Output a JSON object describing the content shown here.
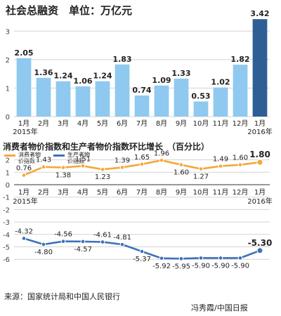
{
  "figure": {
    "title": "社会总融资　单位：万亿元",
    "title2": "消费者物价指数和生产者物价指数环比增长　（百分比）",
    "source": "来源：国家统计局和中国人民银行",
    "credit": "冯秀霞/中国日报"
  },
  "legend": {
    "cpi": "消费者物价指数",
    "ppi": "生产者物价指数"
  },
  "colors": {
    "bar": "#8fc9ef",
    "bar_highlight": "#2d5f96",
    "cpi": "#f5a73b",
    "ppi": "#3c72b8",
    "grid": "#d3d3d3"
  },
  "chart_data": [
    {
      "type": "bar",
      "title": "社会总融资",
      "ylabel": "单位：万亿元",
      "categories": [
        "1月",
        "2月",
        "3月",
        "4月",
        "5月",
        "6月",
        "7月",
        "8月",
        "9月",
        "10月",
        "11月",
        "12月",
        "1月"
      ],
      "year_labels": [
        "2015年",
        "2016年"
      ],
      "values": [
        2.05,
        1.36,
        1.24,
        1.06,
        1.24,
        1.83,
        0.74,
        1.09,
        1.33,
        0.53,
        1.02,
        1.82,
        3.42
      ],
      "value_labels": [
        "2.05",
        "1.36",
        "1.24",
        "1.06",
        "1.24",
        "1.83",
        "0.74",
        "1.09",
        "1.33",
        "0.53",
        "1.02",
        "1.82",
        "3.42"
      ],
      "yticks": [
        "0",
        "1",
        "2",
        "3"
      ],
      "ylim": [
        0,
        3.5
      ],
      "grid": true
    },
    {
      "type": "line",
      "title": "消费者物价指数和生产者物价指数环比增长",
      "ylabel": "百分比",
      "categories": [
        "1月",
        "2月",
        "3月",
        "4月",
        "5月",
        "6月",
        "7月",
        "8月",
        "9月",
        "10月",
        "11月",
        "12月",
        "1月"
      ],
      "year_labels": [
        "2015年",
        "2016年"
      ],
      "yticks": [
        "2",
        "1",
        "0",
        "-1",
        "-2",
        "-3",
        "-4",
        "-5",
        "-6"
      ],
      "ylim": [
        -6.5,
        2.5
      ],
      "grid": true,
      "series": [
        {
          "name": "消费者物价指数",
          "values": [
            0.76,
            1.43,
            1.38,
            1.51,
            1.23,
            1.39,
            1.65,
            1.96,
            1.6,
            1.27,
            1.49,
            1.6,
            1.8
          ],
          "labels": [
            "0.76",
            "1.43",
            "1.38",
            "1.51",
            "1.23",
            "1.39",
            "1.65",
            "1.96",
            "1.60",
            "1.27",
            "1.49",
            "1.60",
            "1.80"
          ]
        },
        {
          "name": "生产者物价指数",
          "values": [
            -4.32,
            -4.8,
            -4.56,
            -4.57,
            -4.61,
            -4.81,
            -5.37,
            -5.92,
            -5.95,
            -5.9,
            -5.9,
            -5.9,
            -5.3
          ],
          "labels": [
            "-4.32",
            "-4.80",
            "-4.56",
            "-4.57",
            "-4.61",
            "-4.81",
            "-5.37",
            "-5.92",
            "-5.95",
            "-5.90",
            "-5.90",
            "-5.90",
            "-5.30"
          ]
        }
      ]
    }
  ]
}
